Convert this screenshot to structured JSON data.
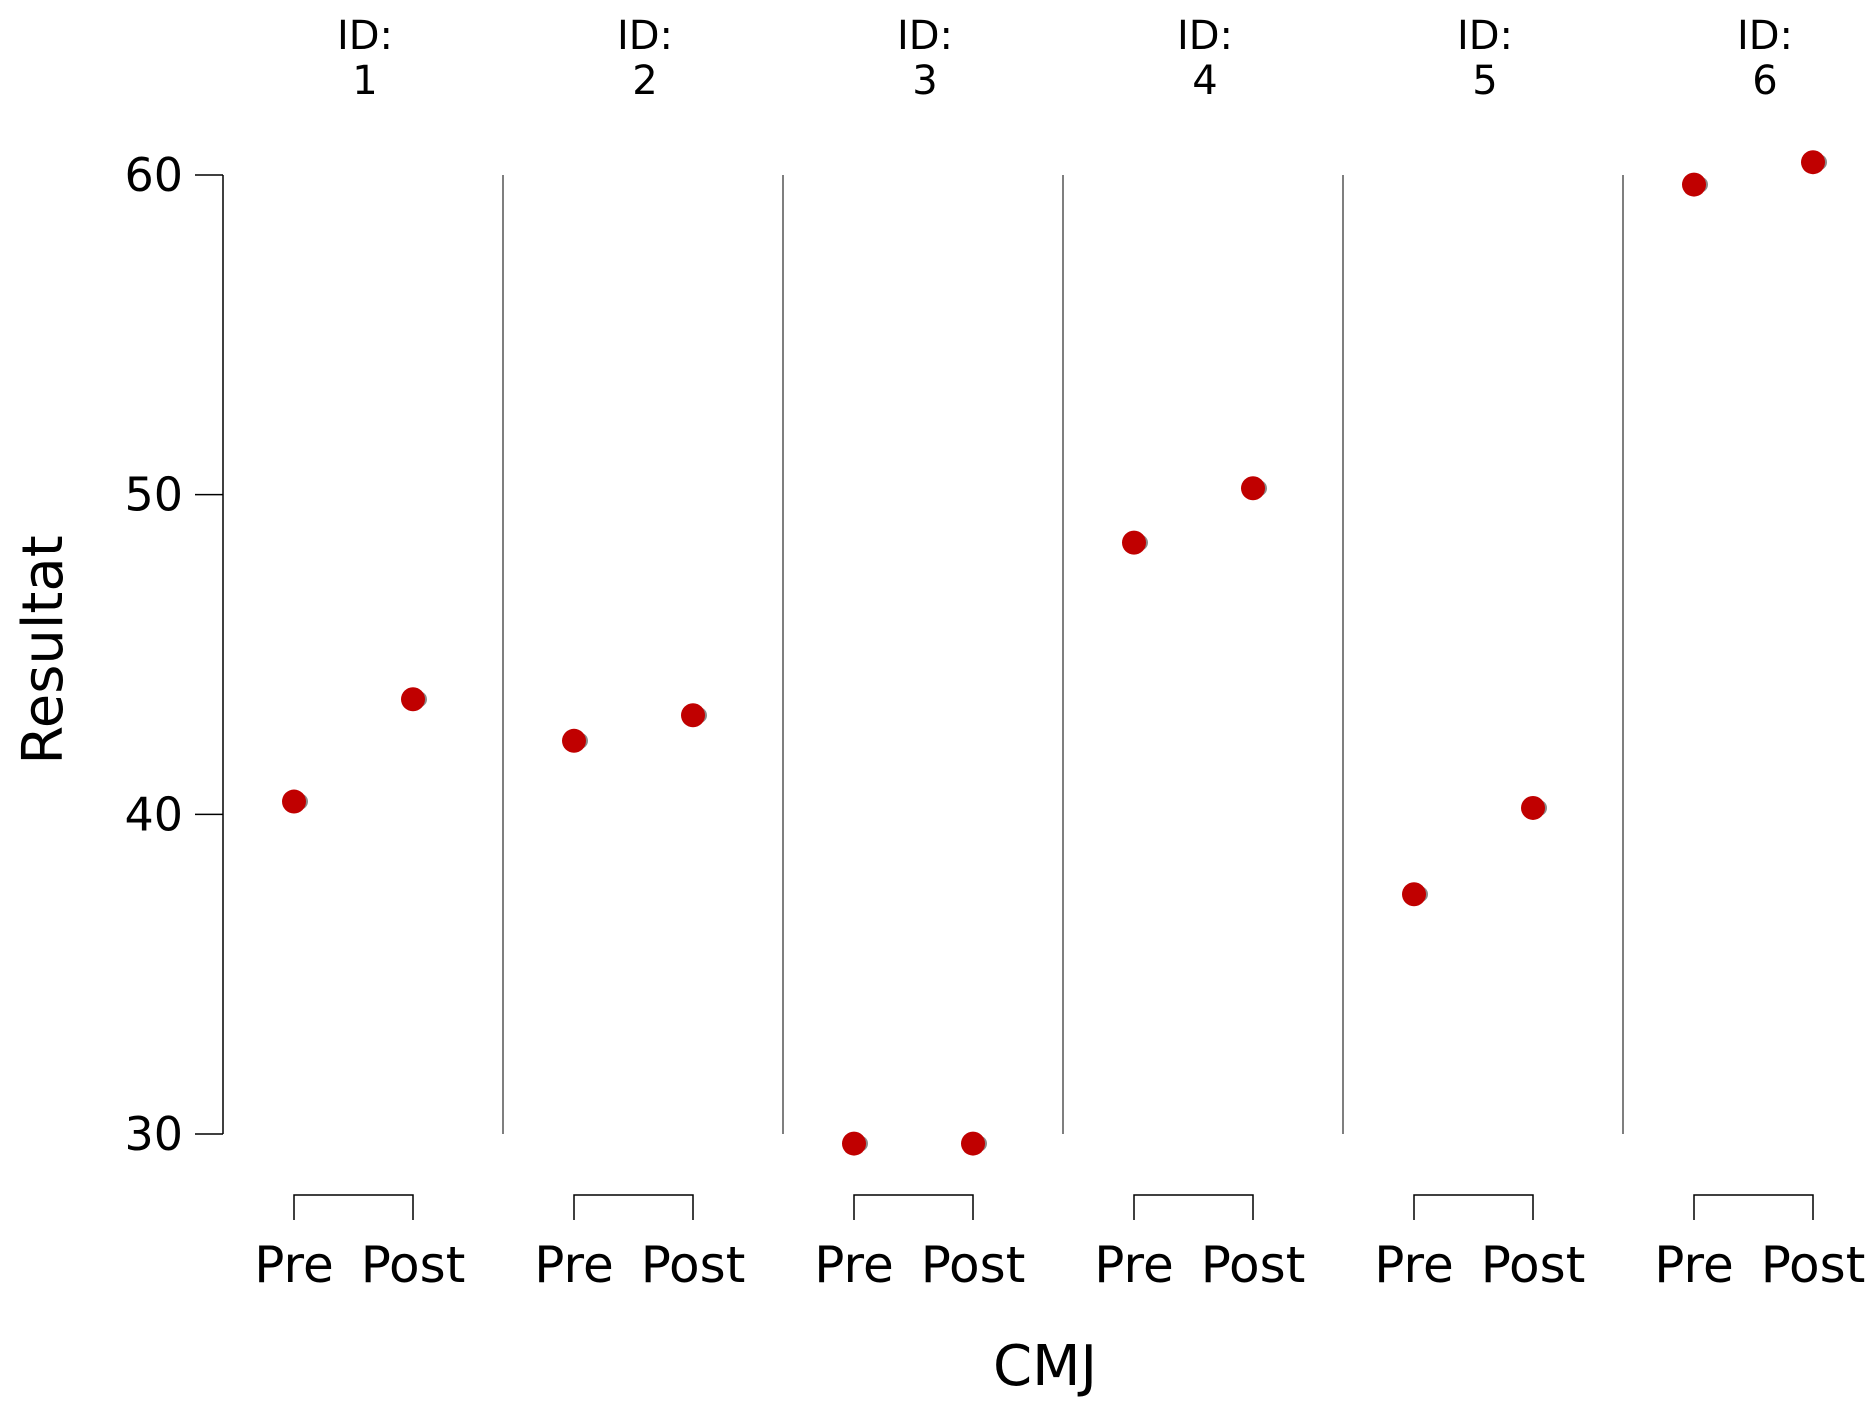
{
  "chart_data": {
    "type": "scatter",
    "title": "",
    "xlabel": "CMJ",
    "ylabel": "Resultat",
    "ylim": [
      30,
      60
    ],
    "yticks": [
      30,
      40,
      50,
      60
    ],
    "categories": [
      "Pre",
      "Post"
    ],
    "facet_label": "ID:",
    "grid": false,
    "point_color": "#c00000",
    "shadow_color": "#8a8a8a",
    "facets": [
      {
        "id": "1",
        "values": [
          40.4,
          43.6
        ]
      },
      {
        "id": "2",
        "values": [
          42.3,
          43.1
        ]
      },
      {
        "id": "3",
        "values": [
          29.7,
          29.7
        ]
      },
      {
        "id": "4",
        "values": [
          48.5,
          50.2
        ]
      },
      {
        "id": "5",
        "values": [
          37.5,
          40.2
        ]
      },
      {
        "id": "6",
        "values": [
          59.7,
          60.4
        ]
      }
    ]
  }
}
